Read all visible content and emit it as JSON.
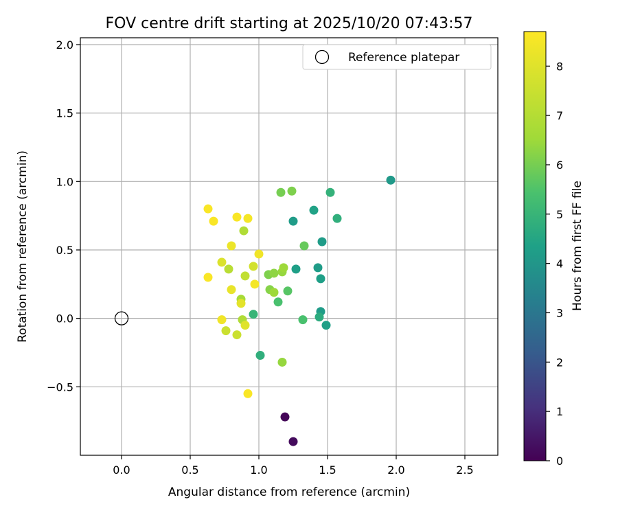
{
  "chart_data": {
    "type": "scatter",
    "title": "FOV centre drift starting at 2025/10/20 07:43:57",
    "xlabel": "Angular distance from reference (arcmin)",
    "ylabel": "Rotation from reference (arcmin)",
    "xlim": [
      -0.3,
      2.74
    ],
    "ylim": [
      -1.0,
      2.05
    ],
    "xticks": [
      0.0,
      0.5,
      1.0,
      1.5,
      2.0,
      2.5
    ],
    "xtick_labels": [
      "0.0",
      "0.5",
      "1.0",
      "1.5",
      "2.0",
      "2.5"
    ],
    "yticks": [
      -0.5,
      0.0,
      0.5,
      1.0,
      1.5,
      2.0
    ],
    "ytick_labels": [
      "−0.5",
      "0.0",
      "0.5",
      "1.0",
      "1.5",
      "2.0"
    ],
    "grid": true,
    "legend": {
      "position": "top-right",
      "entries": [
        "Reference platepar"
      ]
    },
    "reference_point": {
      "x": 0.0,
      "y": 0.0,
      "label": "Reference platepar"
    },
    "colorbar": {
      "label": "Hours from first FF file",
      "colormap": "viridis",
      "range": [
        0,
        8.7
      ],
      "ticks": [
        0,
        1,
        2,
        3,
        4,
        5,
        6,
        7,
        8
      ],
      "tick_labels": [
        "0",
        "1",
        "2",
        "3",
        "4",
        "5",
        "6",
        "7",
        "8"
      ]
    },
    "points": [
      {
        "x": 1.19,
        "y": -0.72,
        "h": 0.1
      },
      {
        "x": 1.25,
        "y": -0.9,
        "h": 0.2
      },
      {
        "x": 1.96,
        "y": 1.01,
        "h": 4.1
      },
      {
        "x": 1.25,
        "y": 0.71,
        "h": 4.2
      },
      {
        "x": 1.4,
        "y": 0.79,
        "h": 4.4
      },
      {
        "x": 1.46,
        "y": 0.56,
        "h": 4.2
      },
      {
        "x": 1.27,
        "y": 0.36,
        "h": 4.3
      },
      {
        "x": 1.43,
        "y": 0.37,
        "h": 4.2
      },
      {
        "x": 1.45,
        "y": 0.29,
        "h": 4.3
      },
      {
        "x": 1.45,
        "y": 0.05,
        "h": 4.2
      },
      {
        "x": 1.49,
        "y": -0.05,
        "h": 4.3
      },
      {
        "x": 1.44,
        "y": 0.01,
        "h": 4.7
      },
      {
        "x": 1.57,
        "y": 0.73,
        "h": 4.8
      },
      {
        "x": 1.52,
        "y": 0.92,
        "h": 4.9
      },
      {
        "x": 1.01,
        "y": -0.27,
        "h": 4.8
      },
      {
        "x": 0.96,
        "y": 0.03,
        "h": 5.0
      },
      {
        "x": 1.32,
        "y": -0.01,
        "h": 5.4
      },
      {
        "x": 1.14,
        "y": 0.12,
        "h": 5.4
      },
      {
        "x": 1.21,
        "y": 0.2,
        "h": 5.6
      },
      {
        "x": 1.33,
        "y": 0.53,
        "h": 5.8
      },
      {
        "x": 1.16,
        "y": 0.92,
        "h": 6.0
      },
      {
        "x": 1.24,
        "y": 0.93,
        "h": 6.1
      },
      {
        "x": 1.07,
        "y": 0.32,
        "h": 6.1
      },
      {
        "x": 1.11,
        "y": 0.33,
        "h": 6.3
      },
      {
        "x": 1.17,
        "y": 0.34,
        "h": 6.4
      },
      {
        "x": 1.18,
        "y": 0.37,
        "h": 6.5
      },
      {
        "x": 1.08,
        "y": 0.21,
        "h": 6.2
      },
      {
        "x": 1.11,
        "y": 0.19,
        "h": 6.5
      },
      {
        "x": 1.17,
        "y": -0.32,
        "h": 6.4
      },
      {
        "x": 0.89,
        "y": 0.64,
        "h": 6.9
      },
      {
        "x": 0.87,
        "y": 0.14,
        "h": 6.7
      },
      {
        "x": 0.88,
        "y": -0.01,
        "h": 6.9
      },
      {
        "x": 0.78,
        "y": 0.36,
        "h": 7.1
      },
      {
        "x": 0.9,
        "y": 0.31,
        "h": 7.3
      },
      {
        "x": 0.76,
        "y": -0.09,
        "h": 7.5
      },
      {
        "x": 0.84,
        "y": -0.12,
        "h": 7.5
      },
      {
        "x": 0.96,
        "y": 0.38,
        "h": 7.7
      },
      {
        "x": 0.73,
        "y": 0.41,
        "h": 7.9
      },
      {
        "x": 0.87,
        "y": 0.11,
        "h": 8.1
      },
      {
        "x": 0.9,
        "y": -0.05,
        "h": 8.0
      },
      {
        "x": 0.8,
        "y": 0.21,
        "h": 8.2
      },
      {
        "x": 0.8,
        "y": 0.53,
        "h": 8.3
      },
      {
        "x": 0.63,
        "y": 0.8,
        "h": 8.6
      },
      {
        "x": 0.67,
        "y": 0.71,
        "h": 8.6
      },
      {
        "x": 0.84,
        "y": 0.74,
        "h": 8.6
      },
      {
        "x": 0.92,
        "y": 0.73,
        "h": 8.5
      },
      {
        "x": 1.0,
        "y": 0.47,
        "h": 8.4
      },
      {
        "x": 0.97,
        "y": 0.25,
        "h": 8.5
      },
      {
        "x": 0.63,
        "y": 0.3,
        "h": 8.6
      },
      {
        "x": 0.73,
        "y": -0.01,
        "h": 8.4
      },
      {
        "x": 0.92,
        "y": -0.55,
        "h": 8.6
      }
    ]
  }
}
